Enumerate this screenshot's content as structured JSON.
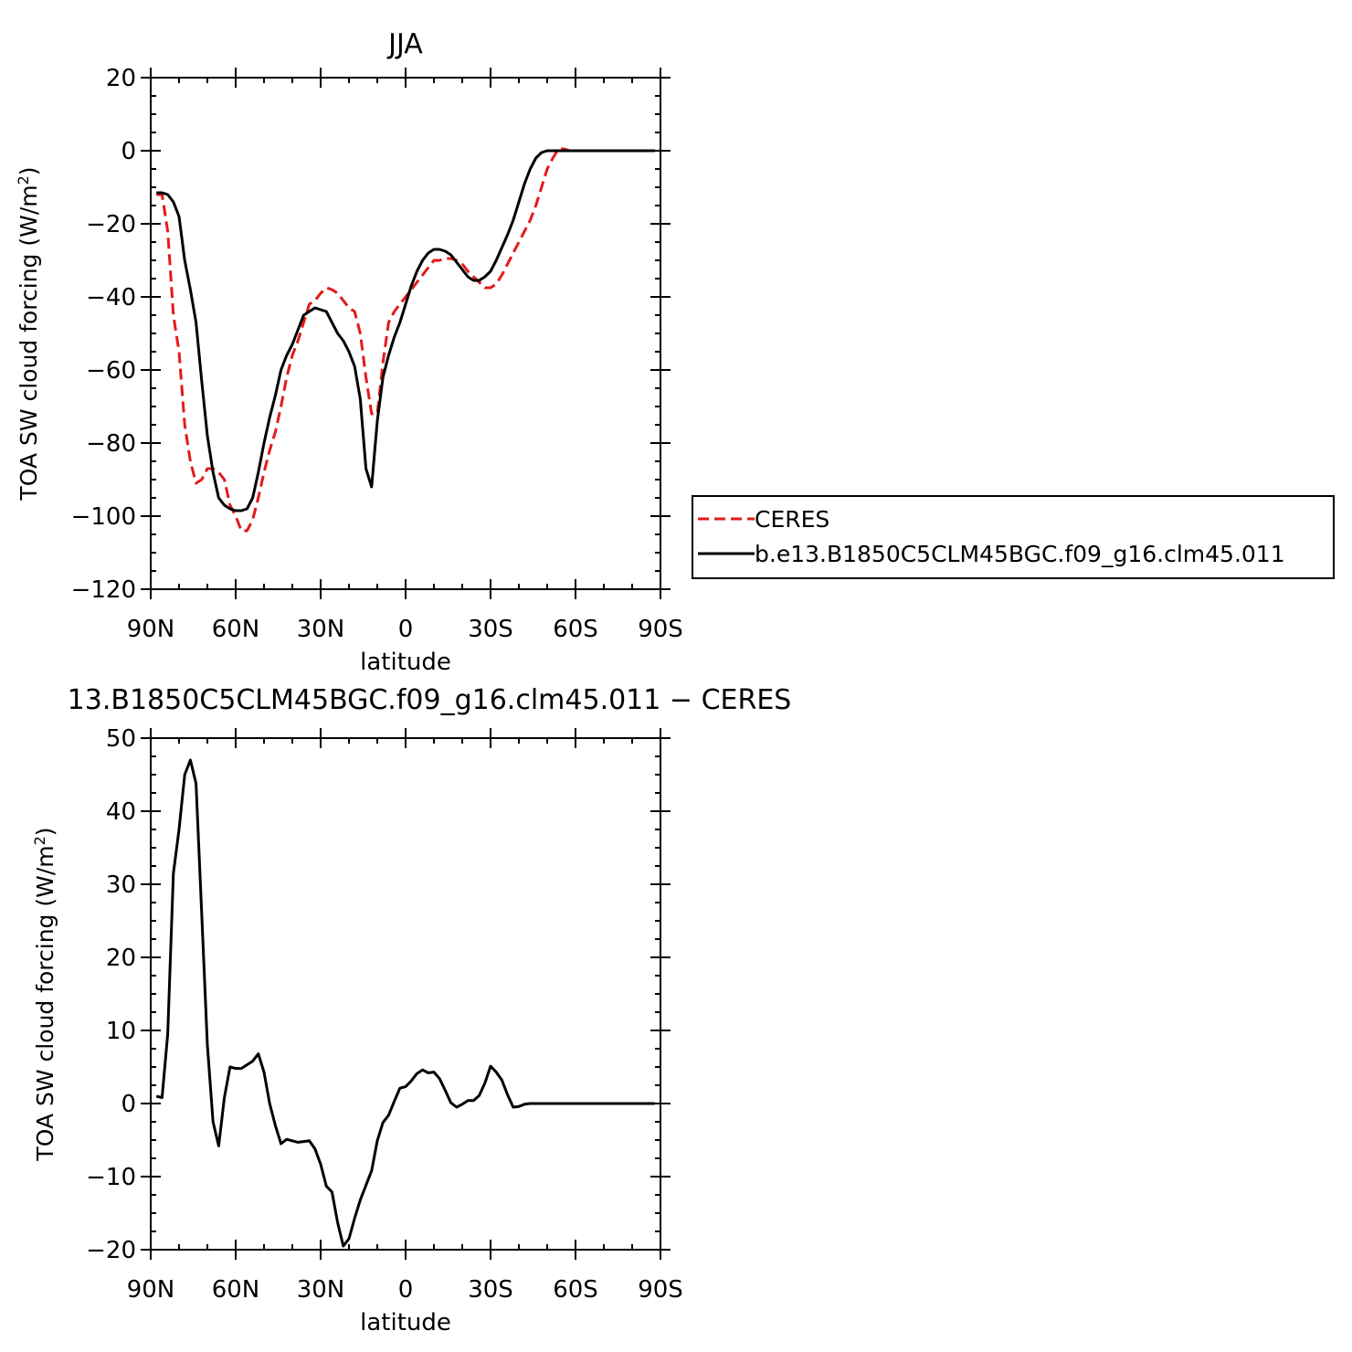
{
  "chart_data": [
    {
      "type": "line",
      "title": "JJA",
      "xlabel": "latitude",
      "ylabel": "TOA SW cloud forcing (W/m²)",
      "ylabel_main": "TOA SW cloud forcing (W/m",
      "ylabel_sup": "2",
      "ylabel_end": ")",
      "xlim": [
        -90,
        90
      ],
      "ylim": [
        -120,
        20
      ],
      "x_ticks": [
        -90,
        -60,
        -30,
        0,
        30,
        60,
        90
      ],
      "x_tick_labels": [
        "90N",
        "60N",
        "30N",
        "0",
        "30S",
        "60S",
        "90S"
      ],
      "y_ticks": [
        -120,
        -100,
        -80,
        -60,
        -40,
        -20,
        0,
        20
      ],
      "y_tick_labels": [
        "−120",
        "−100",
        "−80",
        "−60",
        "−40",
        "−20",
        "0",
        "20"
      ],
      "legend_position": "right",
      "series": [
        {
          "name": "CERES",
          "color": "#e41a1c",
          "style": "dashed",
          "x": [
            -88,
            -86,
            -84,
            -82,
            -80,
            -78,
            -76,
            -74,
            -72,
            -70,
            -68,
            -66,
            -64,
            -62,
            -60,
            -58,
            -56,
            -54,
            -52,
            -50,
            -48,
            -46,
            -44,
            -42,
            -40,
            -38,
            -36,
            -34,
            -32,
            -30,
            -28,
            -26,
            -24,
            -22,
            -20,
            -18,
            -16,
            -14,
            -12,
            -10,
            -8,
            -6,
            -4,
            -2,
            0,
            2,
            4,
            6,
            8,
            10,
            12,
            14,
            16,
            18,
            20,
            22,
            24,
            26,
            28,
            30,
            32,
            34,
            36,
            38,
            40,
            42,
            44,
            46,
            48,
            50,
            52,
            54,
            56,
            58,
            60,
            62,
            64,
            66,
            68,
            70,
            72,
            74,
            76,
            78,
            80,
            82,
            84,
            86,
            88
          ],
          "y": [
            -12,
            -12,
            -22,
            -45,
            -55,
            -75,
            -85,
            -91,
            -90,
            -87,
            -87,
            -88,
            -90,
            -97,
            -100,
            -104,
            -104,
            -101,
            -95,
            -88,
            -82,
            -77,
            -70,
            -62,
            -56,
            -52,
            -47,
            -42,
            -41,
            -39,
            -37.5,
            -38,
            -39,
            -41,
            -43,
            -44,
            -50,
            -62,
            -72,
            -72,
            -58,
            -47,
            -44,
            -42,
            -40,
            -38,
            -36,
            -34,
            -32,
            -30,
            -30,
            -29.5,
            -29.5,
            -30,
            -31,
            -33,
            -34.5,
            -36,
            -37.5,
            -37.5,
            -36.5,
            -34,
            -31,
            -28,
            -25,
            -22,
            -19,
            -15,
            -10,
            -5,
            -2,
            0.5,
            0.5,
            0,
            0,
            0,
            0,
            0,
            0,
            0,
            0,
            0,
            0,
            0,
            0,
            0,
            0,
            0,
            0
          ],
          "y_trimmed_note": ""
        },
        {
          "name": "b.e13.B1850C5CLM45BGC.f09_g16.clm45.011",
          "color": "#000000",
          "style": "solid",
          "x": [
            -88,
            -86,
            -84,
            -82,
            -80,
            -78,
            -76,
            -74,
            -72,
            -70,
            -68,
            -66,
            -64,
            -62,
            -60,
            -58,
            -56,
            -54,
            -52,
            -50,
            -48,
            -46,
            -44,
            -42,
            -40,
            -38,
            -36,
            -34,
            -32,
            -30,
            -28,
            -26,
            -24,
            -22,
            -20,
            -18,
            -16,
            -14,
            -12,
            -10,
            -8,
            -6,
            -4,
            -2,
            0,
            2,
            4,
            6,
            8,
            10,
            12,
            14,
            16,
            18,
            20,
            22,
            24,
            26,
            28,
            30,
            32,
            34,
            36,
            38,
            40,
            42,
            44,
            46,
            48,
            50,
            52,
            54,
            56,
            58,
            60,
            62,
            64,
            66,
            68,
            70,
            72,
            74,
            76,
            78,
            80,
            82,
            84,
            86,
            88
          ],
          "y": [
            -11.5,
            -11.5,
            -12,
            -14,
            -18,
            -30,
            -38,
            -47,
            -63,
            -78,
            -88,
            -95,
            -97,
            -98,
            -98.5,
            -98.5,
            -98,
            -95,
            -88,
            -80,
            -73,
            -67,
            -60,
            -56,
            -53,
            -49,
            -45,
            -44,
            -43,
            -43.5,
            -44,
            -47,
            -50,
            -52,
            -55,
            -59,
            -68,
            -87,
            -92,
            -74,
            -62,
            -56,
            -51,
            -47,
            -42,
            -37,
            -33,
            -30,
            -28,
            -27,
            -27,
            -27.5,
            -28.5,
            -30.5,
            -32.5,
            -34.5,
            -35.5,
            -35.5,
            -34.5,
            -33,
            -30,
            -26.5,
            -23,
            -19,
            -14,
            -9,
            -5,
            -2,
            -0.5,
            0,
            0,
            0,
            0,
            0,
            0,
            0,
            0,
            0,
            0,
            0,
            0,
            0,
            0,
            0,
            0,
            0,
            0,
            0,
            0
          ],
          "y_trimmed_note": ""
        }
      ]
    },
    {
      "type": "line",
      "title": "13.B1850C5CLM45BGC.f09_g16.clm45.011 − CERES",
      "xlabel": "latitude",
      "ylabel": "TOA SW cloud forcing (W/m²)",
      "ylabel_main": "TOA SW cloud forcing (W/m",
      "ylabel_sup": "2",
      "ylabel_end": ")",
      "xlim": [
        -90,
        90
      ],
      "ylim": [
        -20,
        50
      ],
      "x_ticks": [
        -90,
        -60,
        -30,
        0,
        30,
        60,
        90
      ],
      "x_tick_labels": [
        "90N",
        "60N",
        "30N",
        "0",
        "30S",
        "60S",
        "90S"
      ],
      "y_ticks": [
        -20,
        -10,
        0,
        10,
        20,
        30,
        40,
        50
      ],
      "y_tick_labels": [
        "−20",
        "−10",
        "0",
        "10",
        "20",
        "30",
        "40",
        "50"
      ],
      "series": [
        {
          "color": "#000000",
          "style": "solid",
          "x": [
            -88,
            -86,
            -84,
            -82,
            -80,
            -78,
            -76,
            -74,
            -72,
            -70,
            -68,
            -66,
            -64,
            -62,
            -60,
            -58,
            -56,
            -54,
            -52,
            -50,
            -48,
            -46,
            -44,
            -42,
            -40,
            -38,
            -36,
            -34,
            -32,
            -30,
            -28,
            -26,
            -24,
            -22,
            -20,
            -18,
            -16,
            -14,
            -12,
            -10,
            -8,
            -6,
            -4,
            -2,
            0,
            2,
            4,
            6,
            8,
            10,
            12,
            14,
            16,
            18,
            20,
            22,
            24,
            26,
            28,
            30,
            32,
            34,
            36,
            38,
            40,
            42,
            44,
            46,
            48,
            50,
            52,
            54,
            56,
            58,
            60,
            62,
            64,
            66,
            68,
            70,
            72,
            74,
            76,
            78,
            80,
            82,
            84,
            86,
            88
          ],
          "y": [
            1,
            0.8,
            9.5,
            31.5,
            37.5,
            45,
            47,
            43.8,
            26,
            8,
            -2.5,
            -5.8,
            0.8,
            5,
            4.8,
            4.8,
            5.3,
            5.8,
            6.8,
            4.3,
            0,
            -3,
            -5.5,
            -4.9,
            -5.1,
            -5.3,
            -5.2,
            -5.1,
            -6.2,
            -8.3,
            -11.3,
            -12.1,
            -16.3,
            -19.5,
            -18.5,
            -15.7,
            -13.2,
            -11.2,
            -9.2,
            -5.1,
            -2.6,
            -1.6,
            0.3,
            2.1,
            2.3,
            3.1,
            4.1,
            4.6,
            4.2,
            4.3,
            3.4,
            1.8,
            0.1,
            -0.5,
            -0.1,
            0.4,
            0.4,
            1.1,
            2.8,
            5.1,
            4.3,
            3.2,
            1.2,
            -0.5,
            -0.4,
            -0.1,
            0,
            0,
            0,
            0,
            0,
            0,
            0,
            0,
            0,
            0,
            0,
            0,
            0,
            0,
            0,
            0,
            0,
            0,
            0,
            0,
            0,
            0,
            0
          ],
          "y_trimmed_note": ""
        }
      ]
    }
  ]
}
